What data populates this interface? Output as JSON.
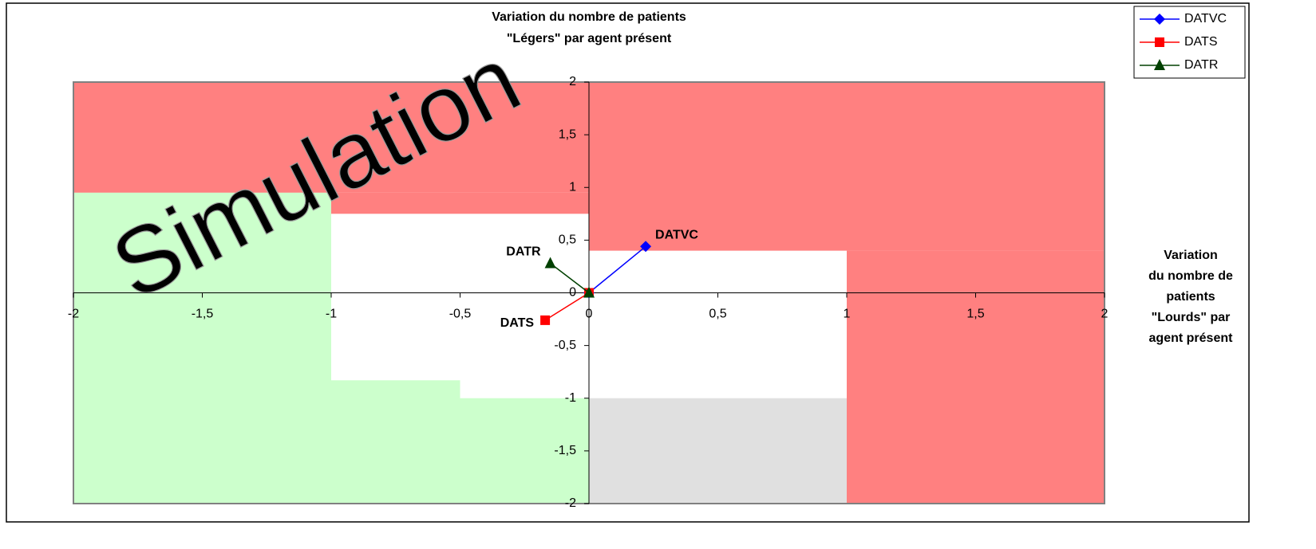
{
  "chart_data": {
    "type": "scatter",
    "title": [
      "Variation du nombre de patients",
      "\"Légers\" par agent présent"
    ],
    "x_label": [
      "Variation",
      "du nombre de",
      "patients",
      "\"Lourds\" par",
      "agent présent"
    ],
    "watermark": "Simulation",
    "xlim": [
      -2,
      2
    ],
    "ylim": [
      -2,
      2
    ],
    "xticks": [
      -2,
      {
        "value": -1.5,
        "label": "-1,5"
      },
      -1,
      {
        "value": -0.5,
        "label": "-0,5"
      },
      0,
      {
        "value": 0.5,
        "label": "0,5"
      },
      1,
      {
        "value": 1.5,
        "label": "1,5"
      },
      2
    ],
    "yticks": [
      {
        "value": -2,
        "label": "-2"
      },
      {
        "value": -1.5,
        "label": "-1,5"
      },
      -1,
      {
        "value": -0.5,
        "label": "-0,5"
      },
      0,
      {
        "value": 0.5,
        "label": "0,5"
      },
      1,
      {
        "value": 1.5,
        "label": "1,5"
      },
      2
    ],
    "zones": [
      {
        "x": [
          -2,
          0
        ],
        "y": [
          0.95,
          2
        ],
        "color": "#ff8080"
      },
      {
        "x": [
          -1,
          0
        ],
        "y": [
          0.75,
          0.95
        ],
        "color": "#ff8080"
      },
      {
        "x": [
          -2,
          -1
        ],
        "y": [
          -2,
          0.95
        ],
        "color": "#ccffcc"
      },
      {
        "x": [
          -1,
          -0.5
        ],
        "y": [
          -2,
          -0.83
        ],
        "color": "#ccffcc"
      },
      {
        "x": [
          -0.5,
          0
        ],
        "y": [
          -2,
          -1
        ],
        "color": "#ccffcc"
      },
      {
        "x": [
          0,
          2
        ],
        "y": [
          0.4,
          2
        ],
        "color": "#ff8080"
      },
      {
        "x": [
          1,
          2
        ],
        "y": [
          -2,
          0.4
        ],
        "color": "#ff8080"
      },
      {
        "x": [
          0,
          1
        ],
        "y": [
          -2,
          -1
        ],
        "color": "#e0e0e0"
      }
    ],
    "series": [
      {
        "name": "DATVC",
        "color": "#0000ff",
        "marker": "diamond",
        "x": [
          0,
          0.22
        ],
        "y": [
          0,
          0.44
        ]
      },
      {
        "name": "DATS",
        "color": "#ff0000",
        "marker": "square",
        "x": [
          0,
          -0.17
        ],
        "y": [
          0,
          -0.26
        ]
      },
      {
        "name": "DATR",
        "color": "#004000",
        "marker": "triangle",
        "x": [
          0,
          -0.15
        ],
        "y": [
          0,
          0.28
        ]
      }
    ]
  }
}
